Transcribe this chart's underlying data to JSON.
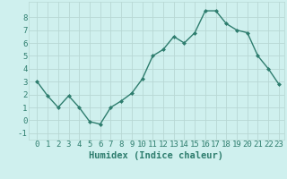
{
  "xlabel": "Humidex (Indice chaleur)",
  "x": [
    0,
    1,
    2,
    3,
    4,
    5,
    6,
    7,
    8,
    9,
    10,
    11,
    12,
    13,
    14,
    15,
    16,
    17,
    18,
    19,
    20,
    21,
    22,
    23
  ],
  "y": [
    3.0,
    1.9,
    1.0,
    1.9,
    1.0,
    -0.1,
    -0.3,
    1.0,
    1.5,
    2.1,
    3.2,
    5.0,
    5.5,
    6.5,
    6.0,
    6.8,
    8.5,
    8.5,
    7.5,
    7.0,
    6.8,
    5.0,
    4.0,
    2.8
  ],
  "line_color": "#2e7d6e",
  "marker": "D",
  "marker_size": 2,
  "bg_color": "#cff0ee",
  "grid_color": "#b8d8d4",
  "ylim": [
    -1.5,
    9.2
  ],
  "yticks": [
    -1,
    0,
    1,
    2,
    3,
    4,
    5,
    6,
    7,
    8
  ],
  "xticks": [
    0,
    1,
    2,
    3,
    4,
    5,
    6,
    7,
    8,
    9,
    10,
    11,
    12,
    13,
    14,
    15,
    16,
    17,
    18,
    19,
    20,
    21,
    22,
    23
  ],
  "xlabel_fontsize": 7.5,
  "tick_fontsize": 6.5,
  "line_width": 1.0
}
